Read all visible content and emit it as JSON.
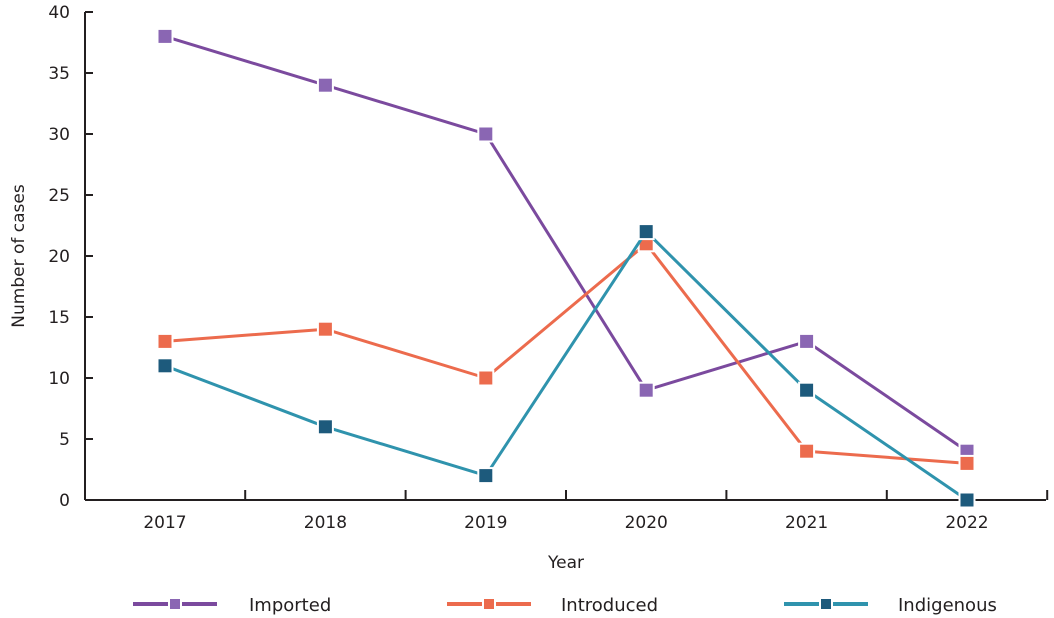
{
  "chart_data": {
    "type": "line",
    "categories": [
      "2017",
      "2018",
      "2019",
      "2020",
      "2021",
      "2022"
    ],
    "series": [
      {
        "name": "Imported",
        "color": "#7b4a9e",
        "marker_color": "#8a66b3",
        "values": [
          38,
          34,
          30,
          9,
          13,
          4
        ]
      },
      {
        "name": "Introduced",
        "color": "#ec6b4d",
        "marker_color": "#ec6b4d",
        "values": [
          13,
          14,
          10,
          21,
          4,
          3
        ]
      },
      {
        "name": "Indigenous",
        "color": "#2f93ad",
        "marker_color": "#1d5a7c",
        "values": [
          11,
          6,
          2,
          22,
          9,
          0
        ]
      }
    ],
    "xlabel": "Year",
    "ylabel": "Number of cases",
    "ylim": [
      0,
      40
    ],
    "yticks": [
      "0",
      "5",
      "10",
      "15",
      "20",
      "25",
      "30",
      "35",
      "40"
    ],
    "grid": false,
    "legend": "bottom"
  }
}
